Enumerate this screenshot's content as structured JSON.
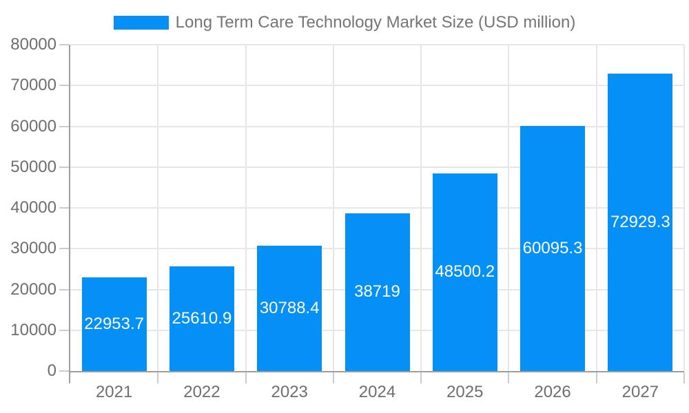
{
  "page": {
    "background": "#ffffff"
  },
  "legend": {
    "label": "Long Term Care Technology Market Size (USD million)",
    "swatch_color": "#0590f7",
    "text_color": "#757575",
    "position": "top-center"
  },
  "chart_data": {
    "type": "bar",
    "title": "Long Term Care Technology Market Size (USD million)",
    "series_name": "Long Term Care Technology Market Size (USD million)",
    "categories": [
      "2021",
      "2022",
      "2023",
      "2024",
      "2025",
      "2026",
      "2027"
    ],
    "values": [
      22953.7,
      25610.9,
      30788.4,
      38719,
      48500.2,
      60095.3,
      72929.3
    ],
    "data_labels": [
      "22953.7",
      "25610.9",
      "30788.4",
      "38719",
      "48500.2",
      "60095.3",
      "72929.3"
    ],
    "xlabel": "",
    "ylabel": "",
    "ylim": [
      0,
      80000
    ],
    "y_ticks": [
      0,
      10000,
      20000,
      30000,
      40000,
      50000,
      60000,
      70000,
      80000
    ],
    "y_tick_labels": [
      "0",
      "10000",
      "20000",
      "30000",
      "40000",
      "50000",
      "60000",
      "70000",
      "80000"
    ],
    "grid": true,
    "legend_position": "top",
    "bar_color": "#0590f7",
    "value_label_color": "#ffffff",
    "grid_color": "#e6e6e6",
    "axis_color": "#9e9e9e",
    "tick_color": "#cccccc",
    "tick_text_color": "#6e6e6e"
  }
}
